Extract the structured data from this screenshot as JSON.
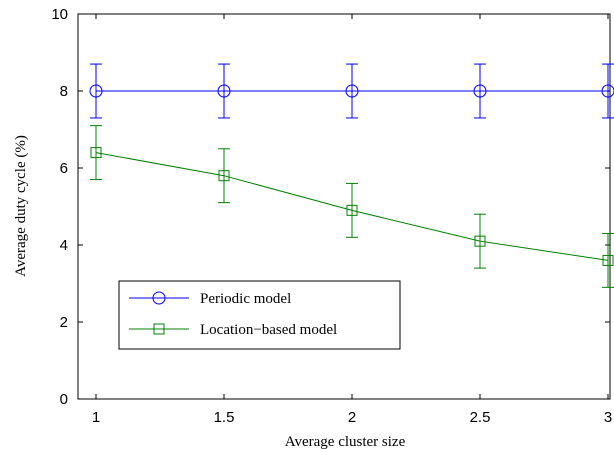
{
  "chart_data": {
    "type": "line",
    "title": "",
    "xlabel": "Average cluster size",
    "ylabel": "Average duty cycle (%)",
    "xlim": [
      1,
      3
    ],
    "ylim": [
      0,
      10
    ],
    "x_ticks": [
      1,
      1.5,
      2,
      2.5,
      3
    ],
    "x_tick_labels": [
      "1",
      "1.5",
      "2",
      "2.5",
      "3"
    ],
    "y_ticks": [
      0,
      2,
      4,
      6,
      8,
      10
    ],
    "y_tick_labels": [
      "0",
      "2",
      "4",
      "6",
      "8",
      "10"
    ],
    "grid": false,
    "legend_position": "lower-left",
    "x": [
      1,
      1.5,
      2,
      2.5,
      3
    ],
    "series": [
      {
        "name": "Periodic model",
        "color": "#0000ff",
        "marker": "circle",
        "values": [
          8.0,
          8.0,
          8.0,
          8.0,
          8.0
        ],
        "error": [
          0.7,
          0.7,
          0.7,
          0.7,
          0.7
        ]
      },
      {
        "name": "Location−based model",
        "color": "#008000",
        "marker": "square",
        "values": [
          6.4,
          5.8,
          4.9,
          4.1,
          3.6
        ],
        "error": [
          0.7,
          0.7,
          0.7,
          0.7,
          0.7
        ]
      }
    ]
  }
}
